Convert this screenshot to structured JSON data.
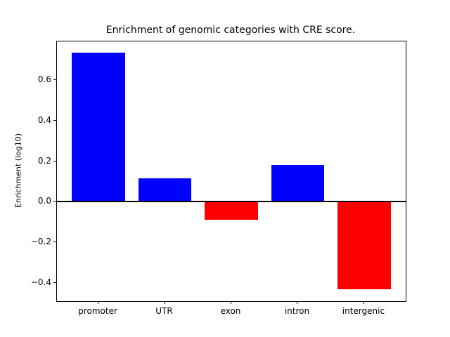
{
  "chart_data": {
    "type": "bar",
    "title": "Enrichment of genomic categories with CRE score.",
    "xlabel": "",
    "ylabel": "Enrichment (log10)",
    "categories": [
      "promoter",
      "UTR",
      "exon",
      "intron",
      "intergenic"
    ],
    "values": [
      0.735,
      0.115,
      -0.09,
      0.18,
      -0.43
    ],
    "positive_color": "#0000ff",
    "negative_color": "#ff0000",
    "baseline": 0,
    "baseline_color": "#000000",
    "ylim": [
      -0.49,
      0.79
    ],
    "xlim": [
      -0.625,
      4.625
    ],
    "bar_width": 0.8,
    "grid": false,
    "legend": null,
    "yticks": [
      {
        "value": -0.4,
        "label": "−0.4"
      },
      {
        "value": -0.2,
        "label": "−0.2"
      },
      {
        "value": 0.0,
        "label": "0.0"
      },
      {
        "value": 0.2,
        "label": "0.2"
      },
      {
        "value": 0.4,
        "label": "0.4"
      },
      {
        "value": 0.6,
        "label": "0.6"
      }
    ]
  }
}
